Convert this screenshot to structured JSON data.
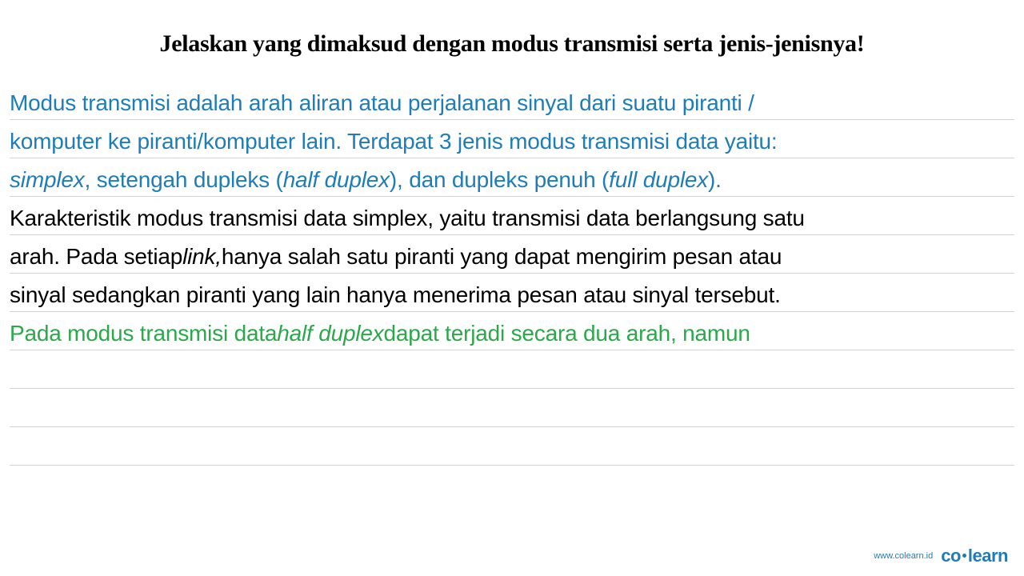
{
  "title": "Jelaskan yang dimaksud dengan modus transmisi serta jenis-jenisnya!",
  "lines": {
    "l1_blue": "Modus transmisi adalah arah aliran atau perjalanan sinyal dari suatu piranti /",
    "l2_blue": "komputer ke piranti/komputer lain. Terdapat 3 jenis modus transmisi data yaitu:",
    "l3_blue_italic_simplex": "simplex",
    "l3_blue_mid1": ", setengah dupleks (",
    "l3_blue_italic_half": "half duplex",
    "l3_blue_mid2": "), dan dupleks penuh (",
    "l3_blue_italic_full": "full duplex",
    "l3_blue_end": ").",
    "l4_black": "Karakteristik modus transmisi data simplex, yaitu transmisi data berlangsung satu",
    "l5_black_a": "arah. Pada setiap ",
    "l5_black_italic": "link,",
    "l5_black_b": " hanya salah satu piranti yang dapat mengirim pesan atau",
    "l6_black": "sinyal sedangkan piranti yang lain hanya menerima pesan atau sinyal tersebut.",
    "l7_green_a": "Pada modus transmisi data ",
    "l7_green_italic": "half duplex",
    "l7_green_b": " dapat terjadi secara dua arah, namun"
  },
  "footer": {
    "url": "www.colearn.id",
    "logo_a": "co",
    "logo_b": "learn"
  },
  "styles": {
    "title_fontsize": 30,
    "body_fontsize": 28,
    "line_height": 48,
    "colors": {
      "blue": "#1e7db8",
      "black": "#000000",
      "green": "#2ba84a",
      "line_border": "#d0d4db",
      "background": "#ffffff"
    }
  }
}
